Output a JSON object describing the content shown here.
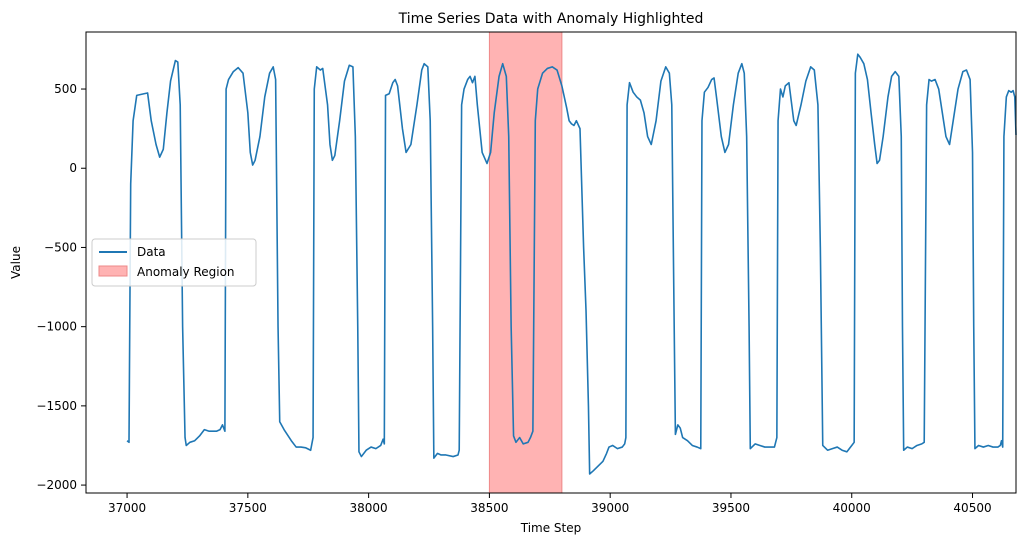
{
  "chart_data": {
    "type": "line",
    "title": "Time Series Data with Anomaly Highlighted",
    "xlabel": "Time Step",
    "ylabel": "Value",
    "xlim": [
      36830,
      40680
    ],
    "ylim": [
      -2050,
      860
    ],
    "x_ticks": [
      37000,
      37500,
      38000,
      38500,
      39000,
      39500,
      40000,
      40500
    ],
    "y_ticks": [
      -2000,
      -1500,
      -1000,
      -500,
      0,
      500
    ],
    "legend_position": "center-left",
    "grid": false,
    "series": [
      {
        "name": "Data",
        "color": "#1f77b4",
        "points": [
          [
            37000,
            -1720
          ],
          [
            37008,
            -1730
          ],
          [
            37015,
            -100
          ],
          [
            37025,
            300
          ],
          [
            37040,
            460
          ],
          [
            37070,
            470
          ],
          [
            37085,
            475
          ],
          [
            37100,
            300
          ],
          [
            37120,
            150
          ],
          [
            37135,
            70
          ],
          [
            37150,
            120
          ],
          [
            37165,
            350
          ],
          [
            37180,
            550
          ],
          [
            37200,
            680
          ],
          [
            37210,
            670
          ],
          [
            37220,
            400
          ],
          [
            37230,
            -1000
          ],
          [
            37240,
            -1700
          ],
          [
            37245,
            -1750
          ],
          [
            37260,
            -1730
          ],
          [
            37280,
            -1720
          ],
          [
            37300,
            -1690
          ],
          [
            37320,
            -1650
          ],
          [
            37340,
            -1660
          ],
          [
            37370,
            -1660
          ],
          [
            37385,
            -1650
          ],
          [
            37395,
            -1620
          ],
          [
            37405,
            -1660
          ],
          [
            37410,
            500
          ],
          [
            37420,
            560
          ],
          [
            37440,
            610
          ],
          [
            37460,
            635
          ],
          [
            37480,
            600
          ],
          [
            37500,
            350
          ],
          [
            37510,
            100
          ],
          [
            37520,
            20
          ],
          [
            37530,
            50
          ],
          [
            37550,
            200
          ],
          [
            37570,
            450
          ],
          [
            37590,
            600
          ],
          [
            37605,
            640
          ],
          [
            37615,
            560
          ],
          [
            37625,
            -1000
          ],
          [
            37632,
            -1600
          ],
          [
            37650,
            -1650
          ],
          [
            37680,
            -1720
          ],
          [
            37700,
            -1760
          ],
          [
            37720,
            -1760
          ],
          [
            37740,
            -1765
          ],
          [
            37760,
            -1780
          ],
          [
            37770,
            -1700
          ],
          [
            37775,
            500
          ],
          [
            37785,
            640
          ],
          [
            37800,
            620
          ],
          [
            37810,
            630
          ],
          [
            37830,
            400
          ],
          [
            37840,
            150
          ],
          [
            37850,
            50
          ],
          [
            37860,
            80
          ],
          [
            37880,
            300
          ],
          [
            37900,
            550
          ],
          [
            37920,
            650
          ],
          [
            37935,
            640
          ],
          [
            37945,
            200
          ],
          [
            37955,
            -1000
          ],
          [
            37960,
            -1790
          ],
          [
            37970,
            -1820
          ],
          [
            37990,
            -1780
          ],
          [
            38010,
            -1760
          ],
          [
            38030,
            -1770
          ],
          [
            38050,
            -1750
          ],
          [
            38060,
            -1710
          ],
          [
            38065,
            -1740
          ],
          [
            38070,
            460
          ],
          [
            38085,
            470
          ],
          [
            38100,
            540
          ],
          [
            38110,
            560
          ],
          [
            38120,
            520
          ],
          [
            38140,
            250
          ],
          [
            38155,
            100
          ],
          [
            38175,
            150
          ],
          [
            38200,
            400
          ],
          [
            38220,
            620
          ],
          [
            38230,
            660
          ],
          [
            38245,
            640
          ],
          [
            38255,
            300
          ],
          [
            38265,
            -1000
          ],
          [
            38270,
            -1830
          ],
          [
            38285,
            -1800
          ],
          [
            38300,
            -1810
          ],
          [
            38320,
            -1810
          ],
          [
            38350,
            -1820
          ],
          [
            38370,
            -1810
          ],
          [
            38375,
            -1780
          ],
          [
            38385,
            400
          ],
          [
            38395,
            500
          ],
          [
            38410,
            560
          ],
          [
            38420,
            580
          ],
          [
            38430,
            540
          ],
          [
            38440,
            580
          ],
          [
            38450,
            400
          ],
          [
            38470,
            100
          ],
          [
            38490,
            30
          ],
          [
            38505,
            100
          ],
          [
            38520,
            350
          ],
          [
            38540,
            580
          ],
          [
            38555,
            660
          ],
          [
            38570,
            580
          ],
          [
            38580,
            200
          ],
          [
            38590,
            -1000
          ],
          [
            38600,
            -1690
          ],
          [
            38610,
            -1730
          ],
          [
            38625,
            -1700
          ],
          [
            38640,
            -1740
          ],
          [
            38660,
            -1730
          ],
          [
            38670,
            -1700
          ],
          [
            38680,
            -1660
          ],
          [
            38690,
            300
          ],
          [
            38700,
            500
          ],
          [
            38720,
            600
          ],
          [
            38740,
            630
          ],
          [
            38760,
            640
          ],
          [
            38780,
            620
          ],
          [
            38800,
            520
          ],
          [
            38820,
            380
          ],
          [
            38830,
            300
          ],
          [
            38840,
            280
          ],
          [
            38850,
            270
          ],
          [
            38860,
            300
          ],
          [
            38875,
            250
          ],
          [
            38890,
            -500
          ],
          [
            38900,
            -900
          ],
          [
            38910,
            -1500
          ],
          [
            38915,
            -1930
          ],
          [
            38930,
            -1910
          ],
          [
            38950,
            -1880
          ],
          [
            38970,
            -1850
          ],
          [
            38985,
            -1800
          ],
          [
            38995,
            -1760
          ],
          [
            39010,
            -1750
          ],
          [
            39030,
            -1770
          ],
          [
            39050,
            -1760
          ],
          [
            39060,
            -1740
          ],
          [
            39065,
            -1700
          ],
          [
            39070,
            400
          ],
          [
            39080,
            540
          ],
          [
            39095,
            480
          ],
          [
            39110,
            450
          ],
          [
            39125,
            430
          ],
          [
            39140,
            350
          ],
          [
            39155,
            200
          ],
          [
            39170,
            150
          ],
          [
            39190,
            300
          ],
          [
            39210,
            550
          ],
          [
            39230,
            640
          ],
          [
            39245,
            600
          ],
          [
            39255,
            400
          ],
          [
            39265,
            -1000
          ],
          [
            39270,
            -1680
          ],
          [
            39280,
            -1620
          ],
          [
            39290,
            -1640
          ],
          [
            39300,
            -1700
          ],
          [
            39320,
            -1720
          ],
          [
            39340,
            -1750
          ],
          [
            39360,
            -1760
          ],
          [
            39375,
            -1770
          ],
          [
            39380,
            300
          ],
          [
            39390,
            480
          ],
          [
            39405,
            510
          ],
          [
            39420,
            560
          ],
          [
            39430,
            570
          ],
          [
            39440,
            450
          ],
          [
            39460,
            200
          ],
          [
            39475,
            100
          ],
          [
            39490,
            150
          ],
          [
            39510,
            400
          ],
          [
            39530,
            600
          ],
          [
            39545,
            660
          ],
          [
            39555,
            600
          ],
          [
            39565,
            200
          ],
          [
            39575,
            -1000
          ],
          [
            39580,
            -1770
          ],
          [
            39600,
            -1740
          ],
          [
            39620,
            -1750
          ],
          [
            39640,
            -1760
          ],
          [
            39660,
            -1760
          ],
          [
            39680,
            -1760
          ],
          [
            39690,
            -1700
          ],
          [
            39695,
            300
          ],
          [
            39705,
            500
          ],
          [
            39715,
            450
          ],
          [
            39725,
            520
          ],
          [
            39740,
            540
          ],
          [
            39750,
            420
          ],
          [
            39760,
            300
          ],
          [
            39770,
            270
          ],
          [
            39790,
            400
          ],
          [
            39810,
            550
          ],
          [
            39830,
            640
          ],
          [
            39845,
            620
          ],
          [
            39860,
            400
          ],
          [
            39870,
            -500
          ],
          [
            39880,
            -1750
          ],
          [
            39900,
            -1780
          ],
          [
            39920,
            -1770
          ],
          [
            39940,
            -1760
          ],
          [
            39960,
            -1780
          ],
          [
            39980,
            -1790
          ],
          [
            39990,
            -1770
          ],
          [
            40000,
            -1750
          ],
          [
            40010,
            -1730
          ],
          [
            40015,
            600
          ],
          [
            40025,
            720
          ],
          [
            40035,
            700
          ],
          [
            40050,
            660
          ],
          [
            40065,
            560
          ],
          [
            40080,
            350
          ],
          [
            40095,
            150
          ],
          [
            40105,
            30
          ],
          [
            40115,
            50
          ],
          [
            40130,
            200
          ],
          [
            40150,
            450
          ],
          [
            40165,
            580
          ],
          [
            40180,
            610
          ],
          [
            40195,
            580
          ],
          [
            40205,
            200
          ],
          [
            40210,
            -1000
          ],
          [
            40215,
            -1780
          ],
          [
            40230,
            -1760
          ],
          [
            40250,
            -1770
          ],
          [
            40270,
            -1750
          ],
          [
            40290,
            -1740
          ],
          [
            40300,
            -1730
          ],
          [
            40310,
            400
          ],
          [
            40320,
            560
          ],
          [
            40330,
            550
          ],
          [
            40345,
            560
          ],
          [
            40360,
            500
          ],
          [
            40375,
            350
          ],
          [
            40390,
            200
          ],
          [
            40405,
            150
          ],
          [
            40420,
            300
          ],
          [
            40440,
            500
          ],
          [
            40460,
            610
          ],
          [
            40475,
            620
          ],
          [
            40490,
            560
          ],
          [
            40500,
            100
          ],
          [
            40505,
            -1000
          ],
          [
            40510,
            -1770
          ],
          [
            40525,
            -1750
          ],
          [
            40545,
            -1760
          ],
          [
            40565,
            -1750
          ],
          [
            40585,
            -1760
          ],
          [
            40605,
            -1760
          ],
          [
            40615,
            -1750
          ],
          [
            40620,
            -1720
          ],
          [
            40625,
            -1760
          ],
          [
            40630,
            200
          ],
          [
            40640,
            450
          ],
          [
            40650,
            490
          ],
          [
            40660,
            480
          ],
          [
            40668,
            490
          ],
          [
            40675,
            450
          ],
          [
            40680,
            210
          ]
        ]
      }
    ],
    "highlight_regions": [
      {
        "name": "Anomaly Region",
        "x0": 38500,
        "x1": 38800,
        "color": "#ff9999",
        "opacity": 0.75
      }
    ]
  }
}
